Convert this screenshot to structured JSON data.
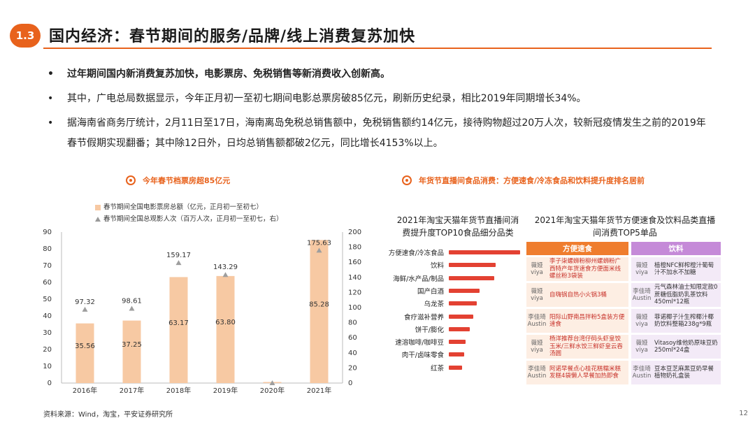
{
  "header": {
    "section_number": "1.3",
    "title": "国内经济：春节期间的服务/品牌/线上消费复苏加快"
  },
  "bullets": [
    "过年期间国内新消费复苏加快，电影票房、免税销售等新消费收入创新高。",
    "其中，广电总局数据显示，今年正月初一至初七期间电影总票房破85亿元，刷新历史纪录，相比2019年同期增长34%。",
    "据海南省商务厅统计，2月11日至17日，海南离岛免税总销售额中，免税销售额约14亿元，接待购物超过20万人次，较新冠疫情发生之前的2019年春节假期实现翻番；其中除12日外，日均总销售额都破2亿元，同比增长4153%以上。"
  ],
  "left_panel": {
    "title": "今年春节档票房超85亿元",
    "legend_bar": "春节期间全国电影票房总额（亿元，正月初一至初七）",
    "legend_line": "春节期间全国总观影人次（百万人次，正月初一至初七，右）"
  },
  "chart_data": {
    "type": "bar",
    "categories": [
      "2016年",
      "2017年",
      "2018年",
      "2019年",
      "2020年",
      "2021年"
    ],
    "series": [
      {
        "name": "春节期间全国电影票房总额（亿元，正月初一至初七）",
        "kind": "bar",
        "axis": "left",
        "values": [
          35.56,
          37.25,
          63.17,
          63.8,
          0,
          85.28
        ],
        "labels": [
          "35.56",
          "37.25",
          "63.17",
          "63.80",
          "",
          "85.28"
        ]
      },
      {
        "name": "春节期间全国总观影人次（百万人次，正月初一至初七，右）",
        "kind": "scatter",
        "axis": "right",
        "values": [
          97.32,
          98.61,
          159.17,
          143.29,
          0,
          175.63
        ],
        "labels": [
          "97.32",
          "98.61",
          "159.17",
          "143.29",
          "",
          "175.63"
        ]
      }
    ],
    "y_left": {
      "min": 0,
      "max": 90,
      "ticks": [
        0,
        10,
        20,
        30,
        40,
        50,
        60,
        70,
        80,
        90
      ]
    },
    "y_right": {
      "min": 0,
      "max": 200,
      "ticks": [
        0,
        20,
        40,
        60,
        80,
        100,
        120,
        140,
        160,
        180,
        200
      ]
    },
    "colors": {
      "bar": "#f7c9a3",
      "marker": "#9e9e9e"
    },
    "grid": false,
    "legend_position": "top"
  },
  "right_panel": {
    "title": "年货节直播间食品消费：方便速食/冷冻食品和饮料提升度排名居前",
    "left_subtitle": "2021年淘宝天猫年货节直播间消费提升度TOP10食品细分品类",
    "ranking": [
      {
        "label": "方便速食/冷冻食品",
        "value": 1.0
      },
      {
        "label": "饮料",
        "value": 0.66
      },
      {
        "label": "海鲜/水产品/制品",
        "value": 0.64
      },
      {
        "label": "国产白酒",
        "value": 0.43
      },
      {
        "label": "乌龙茶",
        "value": 0.39
      },
      {
        "label": "食疗滋补营养",
        "value": 0.34
      },
      {
        "label": "饼干/膨化",
        "value": 0.29
      },
      {
        "label": "速溶咖啡/咖啡豆",
        "value": 0.24
      },
      {
        "label": "肉干/卤味零食",
        "value": 0.22
      },
      {
        "label": "红茶",
        "value": 0.19
      }
    ],
    "right_subtitle": "2021年淘宝天猫年货节方便速食及饮料品类直播间消费TOP5单品",
    "col_instant": "方便速食",
    "col_drinks": "饮料",
    "rows": [
      {
        "h1": "薇娅viya",
        "p1": "李子柒螺蛳粉柳州螺蛳粉广西特产年货速食方便面米线螺丝粉3袋装",
        "h2": "薇娅viya",
        "p2": "植橙NFC鲜榨橙汁葡萄汁不加水不加糖"
      },
      {
        "h1": "薇娅viya",
        "p1": "自嗨锅自热小火锅3桶",
        "h2": "李佳琦Austin",
        "p2": "元气森林油士知限定款0蔗糖低脂奶乳茶饮料450ml*12瓶"
      },
      {
        "h1": "李佳琦Austin",
        "p1": "阳际山野南昌拌粉5盒装方便速食",
        "h2": "薇娅viya",
        "p2": "菲诺椰子汁生榨椰汁椰奶饮料整箱238g*9瓶"
      },
      {
        "h1": "薇娅viya",
        "p1": "杨洋推荐台湾仔码头虾皇饺玉米/三鲜水饺三鲜虾皇云吞汤圆",
        "h2": "薇娅viya",
        "p2": "Vitasoy维他奶原味豆奶250ml*24盒"
      },
      {
        "h1": "李佳琦Austin",
        "p1": "阿诺早餐点心桂花糕糯米糕发糕4袋懒人早餐加热即食",
        "h2": "李佳琦Austin",
        "p2": "豆本豆芝麻黑豆奶早餐植物奶礼盒装"
      }
    ]
  },
  "footer": {
    "source": "资料来源：Wind，淘宝，平安证券研究所",
    "page": "12"
  }
}
